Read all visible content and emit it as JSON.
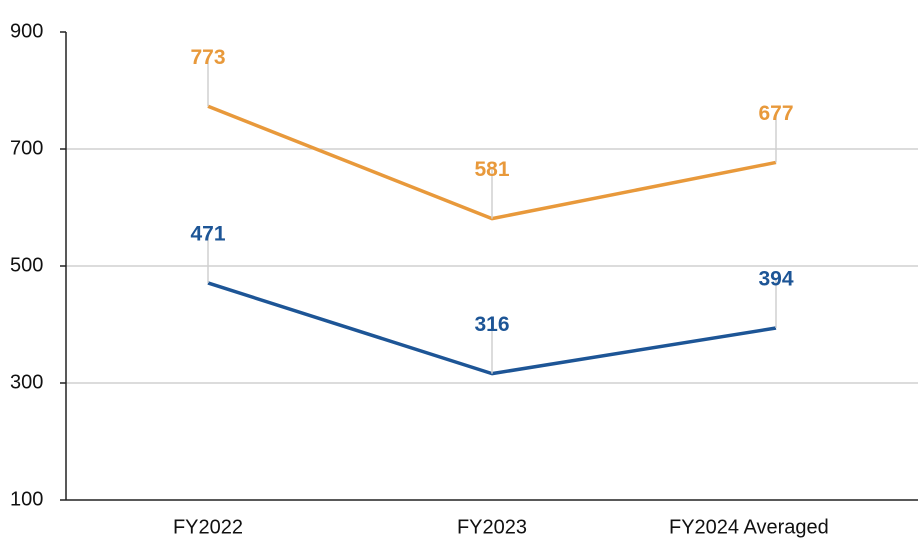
{
  "chart_data": {
    "type": "line",
    "categories": [
      "FY2022",
      "FY2023",
      "FY2024  Averaged"
    ],
    "series": [
      {
        "color": "#e8993b",
        "values": [
          773,
          581,
          677
        ]
      },
      {
        "color": "#1d5596",
        "values": [
          471,
          316,
          394
        ]
      }
    ],
    "ylim": [
      100,
      900
    ],
    "yticks": [
      100,
      300,
      500,
      700,
      900
    ],
    "grid": true
  }
}
